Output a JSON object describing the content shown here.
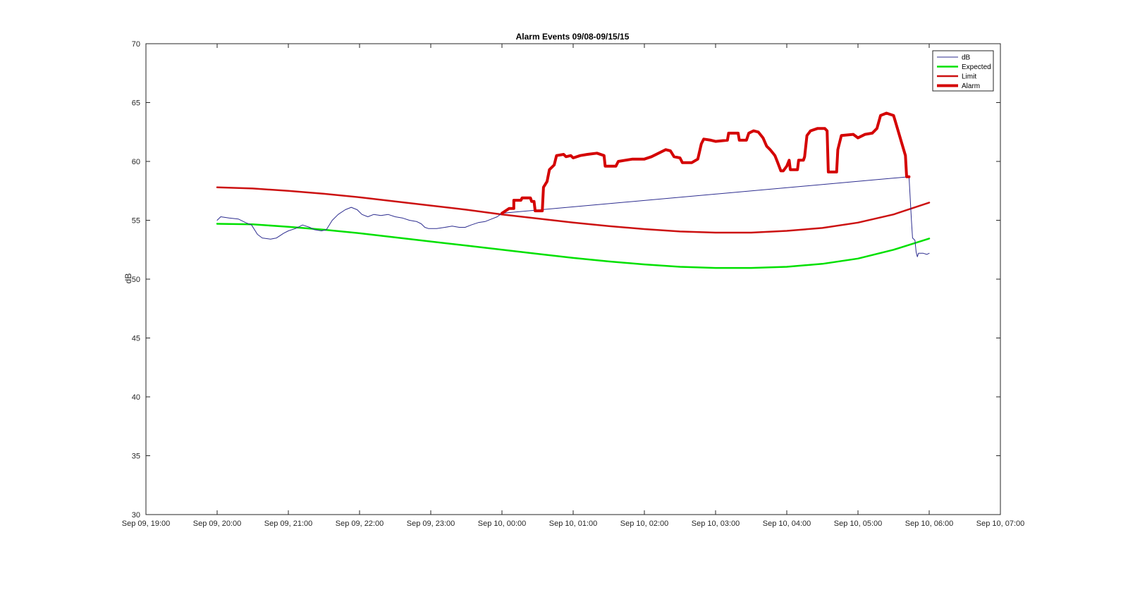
{
  "chart_data": {
    "type": "line",
    "title": "Alarm Events 09/08-09/15/15",
    "xlabel": "",
    "ylabel": "dB",
    "xlim": [
      "Sep 09, 19:00",
      "Sep 10, 07:00"
    ],
    "ylim": [
      30,
      70
    ],
    "x_tick_labels": [
      "Sep 09, 19:00",
      "Sep 09, 20:00",
      "Sep 09, 21:00",
      "Sep 09, 22:00",
      "Sep 09, 23:00",
      "Sep 10, 00:00",
      "Sep 10, 01:00",
      "Sep 10, 02:00",
      "Sep 10, 03:00",
      "Sep 10, 04:00",
      "Sep 10, 05:00",
      "Sep 10, 06:00",
      "Sep 10, 07:00"
    ],
    "y_ticks": [
      30,
      35,
      40,
      45,
      50,
      55,
      60,
      65,
      70
    ],
    "grid": false,
    "legend_position": "top-right",
    "series": [
      {
        "name": "dB",
        "color": "#2d2d8f",
        "points": [
          [
            "Sep 09, 20:00",
            55.0
          ],
          [
            "Sep 09, 20:03",
            55.3
          ],
          [
            "Sep 09, 20:10",
            55.2
          ],
          [
            "Sep 09, 20:18",
            55.1
          ],
          [
            "Sep 09, 20:24",
            54.8
          ],
          [
            "Sep 09, 20:29",
            54.6
          ],
          [
            "Sep 09, 20:34",
            53.8
          ],
          [
            "Sep 09, 20:38",
            53.5
          ],
          [
            "Sep 09, 20:45",
            53.4
          ],
          [
            "Sep 09, 20:50",
            53.5
          ],
          [
            "Sep 09, 20:56",
            53.9
          ],
          [
            "Sep 09, 21:00",
            54.1
          ],
          [
            "Sep 09, 21:06",
            54.3
          ],
          [
            "Sep 09, 21:12",
            54.6
          ],
          [
            "Sep 09, 21:18",
            54.4
          ],
          [
            "Sep 09, 21:22",
            54.2
          ],
          [
            "Sep 09, 21:28",
            54.1
          ],
          [
            "Sep 09, 21:32",
            54.2
          ],
          [
            "Sep 09, 21:37",
            55.0
          ],
          [
            "Sep 09, 21:42",
            55.5
          ],
          [
            "Sep 09, 21:48",
            55.9
          ],
          [
            "Sep 09, 21:53",
            56.1
          ],
          [
            "Sep 09, 21:58",
            55.9
          ],
          [
            "Sep 09, 22:02",
            55.5
          ],
          [
            "Sep 09, 22:07",
            55.3
          ],
          [
            "Sep 09, 22:12",
            55.5
          ],
          [
            "Sep 09, 22:18",
            55.4
          ],
          [
            "Sep 09, 22:24",
            55.5
          ],
          [
            "Sep 09, 22:30",
            55.3
          ],
          [
            "Sep 09, 22:36",
            55.2
          ],
          [
            "Sep 09, 22:42",
            55.0
          ],
          [
            "Sep 09, 22:48",
            54.9
          ],
          [
            "Sep 09, 22:52",
            54.7
          ],
          [
            "Sep 09, 22:55",
            54.4
          ],
          [
            "Sep 09, 22:58",
            54.3
          ],
          [
            "Sep 09, 23:05",
            54.3
          ],
          [
            "Sep 09, 23:12",
            54.4
          ],
          [
            "Sep 09, 23:18",
            54.5
          ],
          [
            "Sep 09, 23:24",
            54.4
          ],
          [
            "Sep 09, 23:29",
            54.4
          ],
          [
            "Sep 09, 23:34",
            54.6
          ],
          [
            "Sep 09, 23:40",
            54.8
          ],
          [
            "Sep 09, 23:46",
            54.9
          ],
          [
            "Sep 09, 23:51",
            55.1
          ],
          [
            "Sep 09, 23:56",
            55.3
          ],
          [
            "Sep 10, 00:00",
            55.6
          ],
          [
            "Sep 10, 05:43",
            58.7
          ],
          [
            "Sep 10, 05:45",
            55.0
          ],
          [
            "Sep 10, 05:46",
            53.5
          ],
          [
            "Sep 10, 05:48",
            53.3
          ],
          [
            "Sep 10, 05:49",
            52.3
          ],
          [
            "Sep 10, 05:50",
            51.9
          ],
          [
            "Sep 10, 05:51",
            52.2
          ],
          [
            "Sep 10, 05:55",
            52.2
          ],
          [
            "Sep 10, 05:58",
            52.1
          ],
          [
            "Sep 10, 06:00",
            52.2
          ]
        ]
      },
      {
        "name": "Expected",
        "color": "#00e000",
        "points": [
          [
            "Sep 09, 20:00",
            54.7
          ],
          [
            "Sep 09, 20:30",
            54.65
          ],
          [
            "Sep 09, 21:00",
            54.45
          ],
          [
            "Sep 09, 21:30",
            54.2
          ],
          [
            "Sep 09, 22:00",
            53.9
          ],
          [
            "Sep 09, 22:30",
            53.55
          ],
          [
            "Sep 09, 23:00",
            53.2
          ],
          [
            "Sep 09, 23:30",
            52.85
          ],
          [
            "Sep 10, 00:00",
            52.5
          ],
          [
            "Sep 10, 00:30",
            52.15
          ],
          [
            "Sep 10, 01:00",
            51.8
          ],
          [
            "Sep 10, 01:30",
            51.5
          ],
          [
            "Sep 10, 02:00",
            51.25
          ],
          [
            "Sep 10, 02:30",
            51.05
          ],
          [
            "Sep 10, 03:00",
            50.95
          ],
          [
            "Sep 10, 03:30",
            50.95
          ],
          [
            "Sep 10, 04:00",
            51.05
          ],
          [
            "Sep 10, 04:30",
            51.3
          ],
          [
            "Sep 10, 05:00",
            51.75
          ],
          [
            "Sep 10, 05:30",
            52.5
          ],
          [
            "Sep 10, 06:00",
            53.45
          ]
        ]
      },
      {
        "name": "Limit",
        "color": "#cc1111",
        "points": [
          [
            "Sep 09, 20:00",
            57.8
          ],
          [
            "Sep 09, 20:30",
            57.7
          ],
          [
            "Sep 09, 21:00",
            57.5
          ],
          [
            "Sep 09, 21:30",
            57.25
          ],
          [
            "Sep 09, 22:00",
            56.95
          ],
          [
            "Sep 09, 22:30",
            56.6
          ],
          [
            "Sep 09, 23:00",
            56.25
          ],
          [
            "Sep 09, 23:30",
            55.9
          ],
          [
            "Sep 10, 00:00",
            55.5
          ],
          [
            "Sep 10, 00:30",
            55.15
          ],
          [
            "Sep 10, 01:00",
            54.8
          ],
          [
            "Sep 10, 01:30",
            54.5
          ],
          [
            "Sep 10, 02:00",
            54.25
          ],
          [
            "Sep 10, 02:30",
            54.05
          ],
          [
            "Sep 10, 03:00",
            53.95
          ],
          [
            "Sep 10, 03:30",
            53.95
          ],
          [
            "Sep 10, 04:00",
            54.1
          ],
          [
            "Sep 10, 04:30",
            54.35
          ],
          [
            "Sep 10, 05:00",
            54.8
          ],
          [
            "Sep 10, 05:30",
            55.5
          ],
          [
            "Sep 10, 06:00",
            56.5
          ]
        ]
      },
      {
        "name": "Alarm",
        "color": "#d40000",
        "points": [
          [
            "Sep 10, 00:00",
            55.6
          ],
          [
            "Sep 10, 00:06",
            56.0
          ],
          [
            "Sep 10, 00:10",
            56.0
          ],
          [
            "Sep 10, 00:10",
            56.7
          ],
          [
            "Sep 10, 00:16",
            56.7
          ],
          [
            "Sep 10, 00:17",
            56.9
          ],
          [
            "Sep 10, 00:24",
            56.9
          ],
          [
            "Sep 10, 00:25",
            56.6
          ],
          [
            "Sep 10, 00:27",
            56.6
          ],
          [
            "Sep 10, 00:28",
            55.8
          ],
          [
            "Sep 10, 00:34",
            55.8
          ],
          [
            "Sep 10, 00:35",
            57.8
          ],
          [
            "Sep 10, 00:38",
            58.3
          ],
          [
            "Sep 10, 00:40",
            59.3
          ],
          [
            "Sep 10, 00:44",
            59.7
          ],
          [
            "Sep 10, 00:46",
            60.5
          ],
          [
            "Sep 10, 00:52",
            60.6
          ],
          [
            "Sep 10, 00:54",
            60.4
          ],
          [
            "Sep 10, 00:58",
            60.5
          ],
          [
            "Sep 10, 01:00",
            60.3
          ],
          [
            "Sep 10, 01:06",
            60.5
          ],
          [
            "Sep 10, 01:12",
            60.6
          ],
          [
            "Sep 10, 01:20",
            60.7
          ],
          [
            "Sep 10, 01:26",
            60.5
          ],
          [
            "Sep 10, 01:27",
            59.6
          ],
          [
            "Sep 10, 01:36",
            59.6
          ],
          [
            "Sep 10, 01:38",
            60.0
          ],
          [
            "Sep 10, 01:44",
            60.1
          ],
          [
            "Sep 10, 01:50",
            60.2
          ],
          [
            "Sep 10, 02:00",
            60.2
          ],
          [
            "Sep 10, 02:06",
            60.4
          ],
          [
            "Sep 10, 02:12",
            60.7
          ],
          [
            "Sep 10, 02:18",
            61.0
          ],
          [
            "Sep 10, 02:22",
            60.9
          ],
          [
            "Sep 10, 02:25",
            60.4
          ],
          [
            "Sep 10, 02:30",
            60.3
          ],
          [
            "Sep 10, 02:32",
            59.9
          ],
          [
            "Sep 10, 02:40",
            59.9
          ],
          [
            "Sep 10, 02:45",
            60.2
          ],
          [
            "Sep 10, 02:48",
            61.5
          ],
          [
            "Sep 10, 02:50",
            61.9
          ],
          [
            "Sep 10, 02:56",
            61.8
          ],
          [
            "Sep 10, 03:00",
            61.7
          ],
          [
            "Sep 10, 03:10",
            61.8
          ],
          [
            "Sep 10, 03:11",
            62.4
          ],
          [
            "Sep 10, 03:19",
            62.4
          ],
          [
            "Sep 10, 03:20",
            61.8
          ],
          [
            "Sep 10, 03:26",
            61.8
          ],
          [
            "Sep 10, 03:28",
            62.4
          ],
          [
            "Sep 10, 03:32",
            62.6
          ],
          [
            "Sep 10, 03:36",
            62.5
          ],
          [
            "Sep 10, 03:40",
            62.0
          ],
          [
            "Sep 10, 03:43",
            61.3
          ],
          [
            "Sep 10, 03:46",
            61.0
          ],
          [
            "Sep 10, 03:50",
            60.5
          ],
          [
            "Sep 10, 03:52",
            60.0
          ],
          [
            "Sep 10, 03:55",
            59.2
          ],
          [
            "Sep 10, 03:57",
            59.2
          ],
          [
            "Sep 10, 04:00",
            59.6
          ],
          [
            "Sep 10, 04:02",
            60.1
          ],
          [
            "Sep 10, 04:03",
            59.3
          ],
          [
            "Sep 10, 04:09",
            59.3
          ],
          [
            "Sep 10, 04:10",
            60.1
          ],
          [
            "Sep 10, 04:14",
            60.1
          ],
          [
            "Sep 10, 04:15",
            60.4
          ],
          [
            "Sep 10, 04:17",
            62.2
          ],
          [
            "Sep 10, 04:20",
            62.6
          ],
          [
            "Sep 10, 04:26",
            62.8
          ],
          [
            "Sep 10, 04:32",
            62.8
          ],
          [
            "Sep 10, 04:34",
            62.6
          ],
          [
            "Sep 10, 04:35",
            59.1
          ],
          [
            "Sep 10, 04:42",
            59.1
          ],
          [
            "Sep 10, 04:43",
            61.0
          ],
          [
            "Sep 10, 04:46",
            62.2
          ],
          [
            "Sep 10, 04:56",
            62.3
          ],
          [
            "Sep 10, 05:00",
            62.0
          ],
          [
            "Sep 10, 05:06",
            62.3
          ],
          [
            "Sep 10, 05:12",
            62.4
          ],
          [
            "Sep 10, 05:16",
            62.8
          ],
          [
            "Sep 10, 05:19",
            63.9
          ],
          [
            "Sep 10, 05:24",
            64.1
          ],
          [
            "Sep 10, 05:30",
            63.9
          ],
          [
            "Sep 10, 05:40",
            60.5
          ],
          [
            "Sep 10, 05:41",
            58.7
          ],
          [
            "Sep 10, 05:43",
            58.7
          ]
        ]
      }
    ]
  }
}
